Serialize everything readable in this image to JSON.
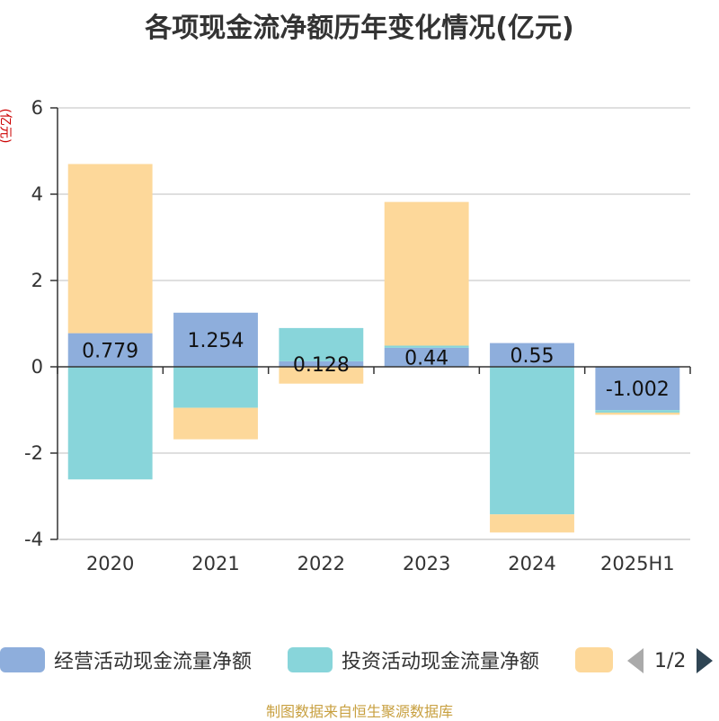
{
  "title": "各项现金流净额历年变化情况(亿元)",
  "y_unit": "(亿元)",
  "source": "制图数据来自恒生聚源数据库",
  "legend": {
    "page": "1/2",
    "items": [
      {
        "name": "经营活动现金流量净额",
        "color": "#8eaedc"
      },
      {
        "name": "投资活动现金流量净额",
        "color": "#88d5da"
      },
      {
        "name": "",
        "color": "#fdd89a"
      }
    ]
  },
  "chart_data": {
    "type": "bar",
    "stacked": true,
    "title": "各项现金流净额历年变化情况(亿元)",
    "ylabel": "(亿元)",
    "categories": [
      "2020",
      "2021",
      "2022",
      "2023",
      "2024",
      "2025H1"
    ],
    "ylim": [
      -4,
      6
    ],
    "yticks": [
      -4,
      -2,
      0,
      2,
      4,
      6
    ],
    "grid": true,
    "legend_position": "bottom",
    "series": [
      {
        "name": "经营活动现金流量净额",
        "color": "#8eaedc",
        "values": [
          0.779,
          1.254,
          0.128,
          0.44,
          0.55,
          -1.002
        ],
        "labels": [
          "0.779",
          "1.254",
          "0.128",
          "0.44",
          "0.55",
          "-1.002"
        ]
      },
      {
        "name": "投资活动现金流量净额",
        "color": "#88d5da",
        "values": [
          -2.61,
          -0.95,
          0.77,
          0.05,
          -3.42,
          -0.06
        ]
      },
      {
        "color": "#fdd89a",
        "values": [
          3.92,
          -0.73,
          -0.39,
          3.33,
          -0.42,
          -0.05
        ]
      }
    ]
  }
}
